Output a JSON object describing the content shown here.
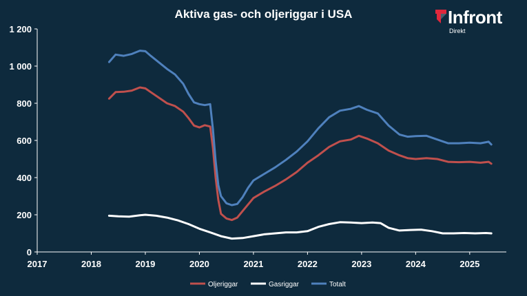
{
  "header": {
    "title": "Aktiva gas- och oljeriggar i USA"
  },
  "logo": {
    "name": "Infront",
    "sub": "Direkt",
    "accent_color": "#e0283c"
  },
  "chart_data": {
    "type": "line",
    "title": "Aktiva gas- och oljeriggar i USA",
    "xlabel": "",
    "ylabel": "",
    "xlim": [
      2017,
      2025.55
    ],
    "ylim": [
      0,
      1200
    ],
    "x_ticks": [
      "2017",
      "2018",
      "2019",
      "2020",
      "2021",
      "2022",
      "2023",
      "2024",
      "2025"
    ],
    "y_ticks": [
      "0",
      "200",
      "400",
      "600",
      "800",
      "1 000",
      "1 200"
    ],
    "grid": false,
    "legend": "bottom",
    "series": [
      {
        "name": "Oljeriggar",
        "color": "#c0504d",
        "points": [
          [
            2018.33,
            825
          ],
          [
            2018.45,
            860
          ],
          [
            2018.6,
            862
          ],
          [
            2018.75,
            868
          ],
          [
            2018.9,
            885
          ],
          [
            2019.0,
            880
          ],
          [
            2019.1,
            860
          ],
          [
            2019.25,
            830
          ],
          [
            2019.4,
            800
          ],
          [
            2019.55,
            785
          ],
          [
            2019.7,
            755
          ],
          [
            2019.8,
            720
          ],
          [
            2019.9,
            680
          ],
          [
            2020.0,
            670
          ],
          [
            2020.1,
            682
          ],
          [
            2020.2,
            675
          ],
          [
            2020.25,
            560
          ],
          [
            2020.3,
            400
          ],
          [
            2020.35,
            280
          ],
          [
            2020.4,
            205
          ],
          [
            2020.5,
            180
          ],
          [
            2020.6,
            172
          ],
          [
            2020.7,
            185
          ],
          [
            2020.8,
            220
          ],
          [
            2020.9,
            255
          ],
          [
            2021.0,
            290
          ],
          [
            2021.2,
            325
          ],
          [
            2021.4,
            355
          ],
          [
            2021.6,
            390
          ],
          [
            2021.8,
            430
          ],
          [
            2022.0,
            480
          ],
          [
            2022.2,
            520
          ],
          [
            2022.4,
            565
          ],
          [
            2022.6,
            595
          ],
          [
            2022.8,
            605
          ],
          [
            2022.95,
            625
          ],
          [
            2023.1,
            610
          ],
          [
            2023.3,
            585
          ],
          [
            2023.5,
            545
          ],
          [
            2023.7,
            520
          ],
          [
            2023.85,
            505
          ],
          [
            2024.0,
            500
          ],
          [
            2024.2,
            505
          ],
          [
            2024.4,
            500
          ],
          [
            2024.6,
            485
          ],
          [
            2024.8,
            483
          ],
          [
            2025.0,
            485
          ],
          [
            2025.2,
            480
          ],
          [
            2025.35,
            485
          ],
          [
            2025.4,
            475
          ]
        ]
      },
      {
        "name": "Gasriggar",
        "color": "#ffffff",
        "points": [
          [
            2018.33,
            195
          ],
          [
            2018.5,
            192
          ],
          [
            2018.7,
            190
          ],
          [
            2018.9,
            197
          ],
          [
            2019.0,
            200
          ],
          [
            2019.2,
            195
          ],
          [
            2019.4,
            185
          ],
          [
            2019.6,
            170
          ],
          [
            2019.8,
            150
          ],
          [
            2020.0,
            125
          ],
          [
            2020.2,
            105
          ],
          [
            2020.4,
            85
          ],
          [
            2020.6,
            72
          ],
          [
            2020.8,
            75
          ],
          [
            2021.0,
            85
          ],
          [
            2021.2,
            95
          ],
          [
            2021.4,
            100
          ],
          [
            2021.6,
            105
          ],
          [
            2021.8,
            105
          ],
          [
            2022.0,
            112
          ],
          [
            2022.2,
            135
          ],
          [
            2022.4,
            150
          ],
          [
            2022.6,
            160
          ],
          [
            2022.8,
            158
          ],
          [
            2023.0,
            155
          ],
          [
            2023.2,
            158
          ],
          [
            2023.35,
            155
          ],
          [
            2023.5,
            130
          ],
          [
            2023.7,
            115
          ],
          [
            2023.9,
            118
          ],
          [
            2024.1,
            120
          ],
          [
            2024.3,
            112
          ],
          [
            2024.5,
            100
          ],
          [
            2024.7,
            100
          ],
          [
            2024.9,
            102
          ],
          [
            2025.1,
            100
          ],
          [
            2025.3,
            102
          ],
          [
            2025.4,
            100
          ]
        ]
      },
      {
        "name": "Totalt",
        "color": "#4f81bd",
        "points": [
          [
            2018.33,
            1022
          ],
          [
            2018.45,
            1062
          ],
          [
            2018.6,
            1055
          ],
          [
            2018.75,
            1065
          ],
          [
            2018.9,
            1083
          ],
          [
            2019.0,
            1080
          ],
          [
            2019.1,
            1055
          ],
          [
            2019.25,
            1020
          ],
          [
            2019.4,
            985
          ],
          [
            2019.55,
            955
          ],
          [
            2019.7,
            905
          ],
          [
            2019.8,
            850
          ],
          [
            2019.9,
            805
          ],
          [
            2020.0,
            795
          ],
          [
            2020.1,
            790
          ],
          [
            2020.2,
            795
          ],
          [
            2020.25,
            660
          ],
          [
            2020.3,
            490
          ],
          [
            2020.35,
            360
          ],
          [
            2020.4,
            300
          ],
          [
            2020.5,
            262
          ],
          [
            2020.6,
            252
          ],
          [
            2020.7,
            258
          ],
          [
            2020.8,
            295
          ],
          [
            2020.9,
            345
          ],
          [
            2021.0,
            385
          ],
          [
            2021.2,
            420
          ],
          [
            2021.4,
            455
          ],
          [
            2021.6,
            495
          ],
          [
            2021.8,
            540
          ],
          [
            2022.0,
            595
          ],
          [
            2022.2,
            665
          ],
          [
            2022.4,
            725
          ],
          [
            2022.6,
            760
          ],
          [
            2022.8,
            770
          ],
          [
            2022.95,
            785
          ],
          [
            2023.1,
            765
          ],
          [
            2023.3,
            745
          ],
          [
            2023.5,
            680
          ],
          [
            2023.7,
            632
          ],
          [
            2023.85,
            620
          ],
          [
            2024.0,
            623
          ],
          [
            2024.2,
            625
          ],
          [
            2024.4,
            605
          ],
          [
            2024.6,
            585
          ],
          [
            2024.8,
            585
          ],
          [
            2025.0,
            588
          ],
          [
            2025.2,
            585
          ],
          [
            2025.35,
            593
          ],
          [
            2025.4,
            578
          ]
        ]
      }
    ]
  }
}
